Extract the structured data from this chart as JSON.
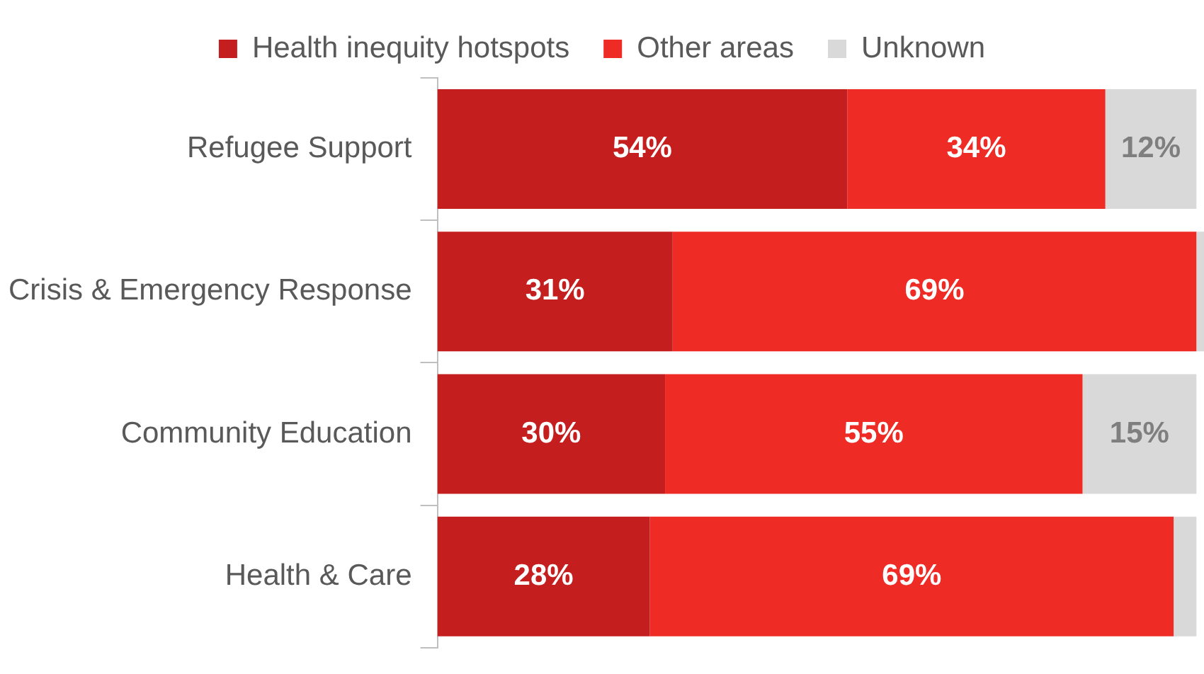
{
  "chart_data": {
    "type": "bar",
    "orientation": "horizontal",
    "stacked": true,
    "categories": [
      "Refugee Support",
      "Crisis & Emergency Response",
      "Community Education",
      "Health & Care"
    ],
    "series": [
      {
        "name": "Health inequity hotspots",
        "color": "#c41f1e",
        "values": [
          54,
          31,
          30,
          28
        ],
        "value_labels": [
          "54%",
          "31%",
          "30%",
          "28%"
        ]
      },
      {
        "name": "Other areas",
        "color": "#ee2b25",
        "values": [
          34,
          69,
          55,
          69
        ],
        "value_labels": [
          "34%",
          "69%",
          "55%",
          "69%"
        ]
      },
      {
        "name": "Unknown",
        "color": "#d9d9d9",
        "values": [
          12,
          1,
          15,
          3
        ],
        "value_labels": [
          "12%",
          null,
          "15%",
          null
        ]
      }
    ],
    "xlim": [
      0,
      101
    ],
    "tick_labels": "y",
    "legend": "top"
  }
}
